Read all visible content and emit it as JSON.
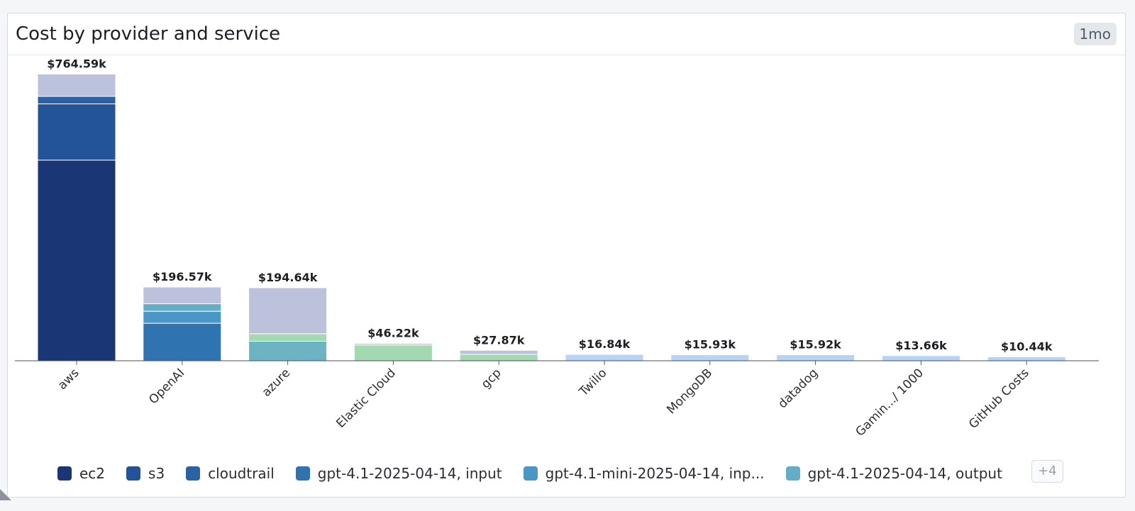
{
  "widget": {
    "title": "Cost by provider and service",
    "timeframe": "1mo",
    "more_label": "+4"
  },
  "legend": [
    {
      "label": "ec2",
      "color": "#1b3674"
    },
    {
      "label": "s3",
      "color": "#23549a"
    },
    {
      "label": "cloudtrail",
      "color": "#2a62a8"
    },
    {
      "label": "gpt-4.1-2025-04-14, input",
      "color": "#2f73b0"
    },
    {
      "label": "gpt-4.1-mini-2025-04-14, inp...",
      "color": "#4a97c7"
    },
    {
      "label": "gpt-4.1-2025-04-14, output",
      "color": "#64adc7"
    }
  ],
  "chart_data": {
    "type": "bar",
    "stacked": true,
    "title": "Cost by provider and service",
    "ylim": [
      0,
      790
    ],
    "categories": [
      "aws",
      "OpenAI",
      "azure",
      "Elastic Cloud",
      "gcp",
      "Twilio",
      "MongoDB",
      "datadog",
      "Gamin.../ 1000",
      "GitHub Costs"
    ],
    "totals": [
      "$764.59k",
      "$196.57k",
      "$194.64k",
      "$46.22k",
      "$27.87k",
      "$16.84k",
      "$15.93k",
      "$15.92k",
      "$13.66k",
      "$10.44k"
    ],
    "stacks": [
      [
        {
          "value": 535,
          "color": "#1b3674"
        },
        {
          "value": 150,
          "color": "#23549a"
        },
        {
          "value": 20,
          "color": "#2a62a8"
        },
        {
          "value": 59.59,
          "color": "#bcc2dc"
        }
      ],
      [
        {
          "value": 100,
          "color": "#2f73b0"
        },
        {
          "value": 32,
          "color": "#4a97c7"
        },
        {
          "value": 20,
          "color": "#64adc7"
        },
        {
          "value": 44.57,
          "color": "#bcc2dc"
        }
      ],
      [
        {
          "value": 52,
          "color": "#6cb4c4"
        },
        {
          "value": 20,
          "color": "#a3d8b0"
        },
        {
          "value": 122.64,
          "color": "#bcc2dc"
        }
      ],
      [
        {
          "value": 42,
          "color": "#a3d8b0"
        },
        {
          "value": 4.22,
          "color": "#bcc2dc"
        }
      ],
      [
        {
          "value": 17,
          "color": "#a3d8b0"
        },
        {
          "value": 10.87,
          "color": "#bcc2dc"
        }
      ],
      [
        {
          "value": 16.84,
          "color": "#b7d3f5"
        }
      ],
      [
        {
          "value": 15.93,
          "color": "#b7d3f5"
        }
      ],
      [
        {
          "value": 15.92,
          "color": "#b7d3f5"
        }
      ],
      [
        {
          "value": 13.66,
          "color": "#b7d3f5"
        }
      ],
      [
        {
          "value": 10.44,
          "color": "#b7d3f5"
        }
      ]
    ],
    "grid": false,
    "legend_position": "bottom"
  }
}
